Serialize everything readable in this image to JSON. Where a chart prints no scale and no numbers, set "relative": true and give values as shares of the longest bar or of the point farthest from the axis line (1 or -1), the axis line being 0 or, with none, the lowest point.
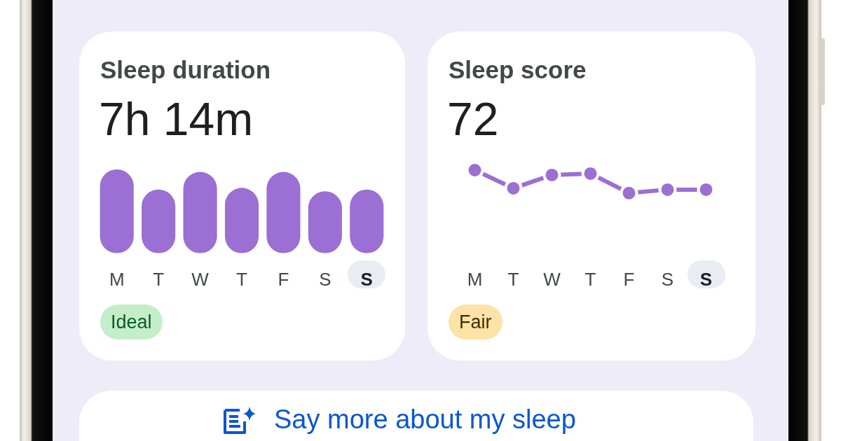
{
  "chart_data": [
    {
      "type": "bar",
      "title": "Sleep duration",
      "subtitle": "7h 14m",
      "annotations": [
        "Ideal"
      ],
      "categories": [
        "M",
        "T",
        "W",
        "T",
        "F",
        "S",
        "S"
      ],
      "values": [
        1,
        0.76,
        0.97,
        0.78,
        0.97,
        0.74,
        0.76
      ],
      "color": "#9b6fd4",
      "relative": true
    },
    {
      "type": "line",
      "title": "Sleep score",
      "subtitle": "72",
      "annotations": [
        "Fair"
      ],
      "categories": [
        "M",
        "T",
        "W",
        "T",
        "F",
        "S",
        "S"
      ],
      "values": [
        1,
        0.21,
        0.79,
        0.85,
        0,
        0.15,
        0.15
      ],
      "color": "#9b6fd4",
      "relative": true,
      "marker": "circle"
    },
    {
      "type": "other",
      "title": "Say more about my sleep"
    }
  ]
}
